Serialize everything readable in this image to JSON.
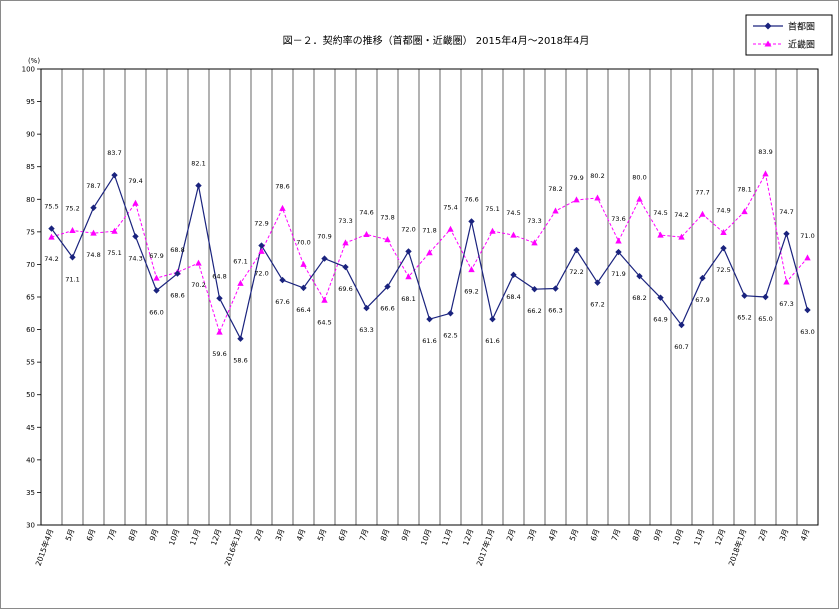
{
  "chart_data": {
    "type": "line",
    "title": "図－２．契約率の推移（首都圏・近畿圏） 2015年4月～2018年4月",
    "ylabel": "(%)",
    "ylim": [
      30,
      100
    ],
    "yticks": [
      30,
      35,
      40,
      45,
      50,
      55,
      60,
      65,
      70,
      75,
      80,
      85,
      90,
      95,
      100
    ],
    "grid": "vertical",
    "legend": "top-right",
    "categories": [
      "2015年4月",
      "5月",
      "6月",
      "7月",
      "8月",
      "9月",
      "10月",
      "11月",
      "12月",
      "2016年1月",
      "2月",
      "3月",
      "4月",
      "5月",
      "6月",
      "7月",
      "8月",
      "9月",
      "10月",
      "11月",
      "12月",
      "2017年1月",
      "2月",
      "3月",
      "4月",
      "5月",
      "6月",
      "7月",
      "8月",
      "9月",
      "10月",
      "11月",
      "12月",
      "2018年1月",
      "2月",
      "3月",
      "4月"
    ],
    "series": [
      {
        "name": "首都圏",
        "color": "#1a237e",
        "marker": "diamond",
        "line": "solid",
        "values": [
          75.5,
          71.1,
          78.7,
          83.7,
          74.3,
          66.0,
          68.6,
          82.1,
          64.8,
          58.6,
          72.9,
          67.6,
          66.4,
          70.9,
          69.6,
          63.3,
          66.6,
          72.0,
          61.6,
          62.5,
          76.6,
          61.6,
          68.4,
          66.2,
          66.3,
          72.2,
          67.2,
          71.9,
          68.2,
          64.9,
          60.7,
          67.9,
          72.5,
          65.2,
          65.0,
          74.7,
          63.0
        ],
        "labels": [
          "75.5",
          "71.1",
          "78.7",
          "83.7",
          "74.3",
          "66.0",
          "68.6",
          "82.1",
          "64.8",
          "58.6",
          "72.9",
          "67.6",
          "66.4",
          "70.9",
          "69.6",
          "63.3",
          "66.6",
          "72.0",
          "61.6",
          "62.5",
          "76.6",
          "61.6",
          "68.4",
          "66.2",
          "66.3",
          "72.2",
          "67.2",
          "71.9",
          "68.2",
          "64.9",
          "60.7",
          "67.9",
          "72.5",
          "65.2",
          "65.0",
          "74.7",
          "63.0"
        ]
      },
      {
        "name": "近畿圏",
        "color": "#ff00ff",
        "marker": "triangle",
        "line": "dashed",
        "values": [
          74.2,
          75.2,
          74.8,
          75.1,
          79.4,
          67.9,
          68.8,
          70.2,
          59.6,
          67.1,
          72.0,
          78.6,
          70.0,
          64.5,
          73.3,
          74.6,
          73.8,
          68.1,
          71.8,
          75.4,
          69.2,
          75.1,
          74.5,
          73.3,
          78.2,
          79.9,
          80.2,
          73.6,
          80.0,
          74.5,
          74.2,
          77.7,
          74.9,
          78.1,
          83.9,
          67.3,
          71.0
        ],
        "labels": [
          "74.2",
          "75.2",
          "74.8",
          "75.1",
          "79.4",
          "67.9",
          "68.8",
          "70.2",
          "59.6",
          "67.1",
          "72.0",
          "78.6",
          "70.0",
          "64.5",
          "73.3",
          "74.6",
          "73.8",
          "68.1",
          "71.8",
          "75.4",
          "69.2",
          "75.1",
          "74.5",
          "73.3",
          "78.2",
          "79.9",
          "80.2",
          "73.6",
          "80.0",
          "74.5",
          "74.2",
          "77.7",
          "74.9",
          "78.1",
          "83.9",
          "67.3",
          "71.0"
        ]
      }
    ]
  }
}
